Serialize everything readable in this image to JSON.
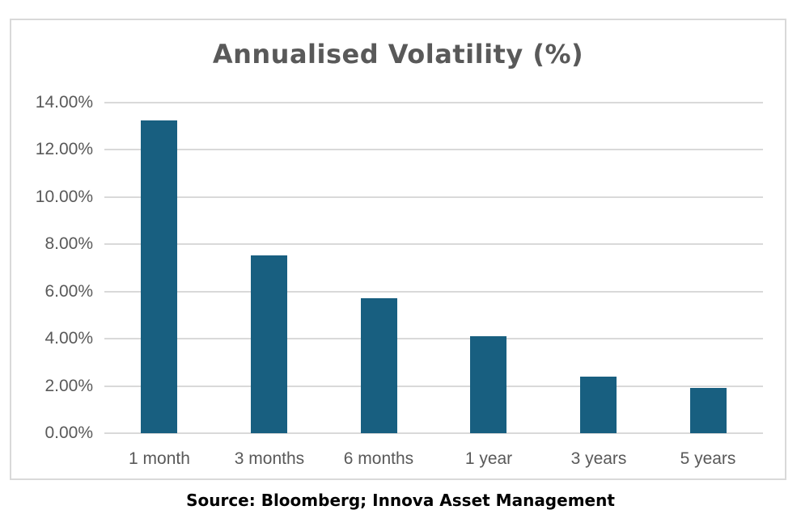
{
  "source_note": "Source: Bloomberg; Innova Asset Management",
  "chart_data": {
    "type": "bar",
    "title": "Annualised Volatility (%)",
    "categories": [
      "1 month",
      "3 months",
      "6 months",
      "1 year",
      "3 years",
      "5 years"
    ],
    "values": [
      13.25,
      7.52,
      5.72,
      4.11,
      2.4,
      1.93
    ],
    "y_tick_labels": [
      "0.00%",
      "2.00%",
      "4.00%",
      "6.00%",
      "8.00%",
      "10.00%",
      "12.00%",
      "14.00%"
    ],
    "y_tick_values": [
      0,
      2,
      4,
      6,
      8,
      10,
      12,
      14
    ],
    "ylim": [
      0,
      14
    ],
    "xlabel": "",
    "ylabel": "",
    "grid": "horizontal",
    "legend": "none",
    "colors": {
      "bar": "#185f80",
      "gridline": "#d9d9d9",
      "frame_border": "#d9d9d9",
      "title_text": "#595959",
      "axis_text": "#595959",
      "source_text": "#000000"
    }
  }
}
